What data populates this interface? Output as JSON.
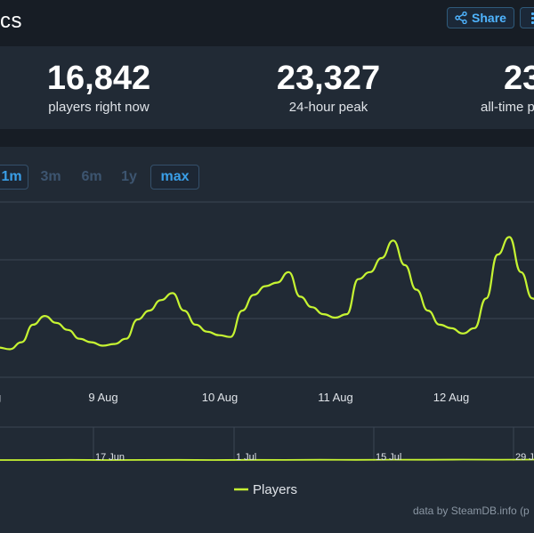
{
  "header": {
    "title_fragment": "cs",
    "share_label": "Share",
    "share_icon": "share-icon",
    "menu_icon": "more-vertical-icon"
  },
  "stats": [
    {
      "value": "16,842",
      "label": "players right now"
    },
    {
      "value": "23,327",
      "label": "24-hour peak"
    },
    {
      "value": "23",
      "label": "all-time p"
    }
  ],
  "ranges": [
    {
      "label": "1m",
      "active": true
    },
    {
      "label": "3m",
      "active": false
    },
    {
      "label": "6m",
      "active": false
    },
    {
      "label": "1y",
      "active": false
    },
    {
      "label": "max",
      "active": true
    }
  ],
  "colors": {
    "line": "#c6f432",
    "background": "#212a35",
    "grid": "#3a4552"
  },
  "chart_data": [
    {
      "type": "line",
      "x_ticks": [
        "9 Aug",
        "10 Aug",
        "11 Aug",
        "12 Aug"
      ],
      "y_ticks": [],
      "series": [
        {
          "name": "Players",
          "x": [
            8.0,
            8.1,
            8.2,
            8.3,
            8.4,
            8.5,
            8.6,
            8.7,
            8.8,
            8.9,
            9.0,
            9.1,
            9.2,
            9.3,
            9.4,
            9.5,
            9.6,
            9.7,
            9.8,
            9.9,
            10.0,
            10.1,
            10.2,
            10.3,
            10.4,
            10.5,
            10.6,
            10.7,
            10.8,
            10.9,
            11.0,
            11.1,
            11.2,
            11.3,
            11.4,
            11.5,
            11.6,
            11.7,
            11.8,
            11.9,
            12.0,
            12.1,
            12.2,
            12.3,
            12.4,
            12.5,
            12.6,
            12.7,
            12.8,
            12.9,
            13.0,
            13.05
          ],
          "y": [
            0.2,
            0.17,
            0.16,
            0.2,
            0.3,
            0.35,
            0.31,
            0.27,
            0.22,
            0.2,
            0.18,
            0.19,
            0.22,
            0.33,
            0.38,
            0.44,
            0.48,
            0.38,
            0.3,
            0.26,
            0.24,
            0.23,
            0.38,
            0.47,
            0.52,
            0.54,
            0.6,
            0.46,
            0.4,
            0.36,
            0.34,
            0.36,
            0.56,
            0.6,
            0.68,
            0.78,
            0.64,
            0.5,
            0.38,
            0.3,
            0.28,
            0.25,
            0.28,
            0.45,
            0.7,
            0.8,
            0.6,
            0.45,
            0.35,
            0.25,
            0.22,
            0.22
          ]
        }
      ],
      "legend": "bottom"
    },
    {
      "type": "line",
      "x_ticks": [
        "17 Jun",
        "1 Jul",
        "15 Jul",
        "29 J"
      ],
      "series": [
        {
          "name": "Players",
          "values": [
            0.1,
            0.1,
            0.12,
            0.1,
            0.11,
            0.12,
            0.1,
            0.12,
            0.11,
            0.13,
            0.12,
            0.14,
            0.13,
            0.15,
            0.14,
            0.15
          ]
        }
      ]
    }
  ],
  "legend_label": "Players",
  "credit": "data by SteamDB.info (p"
}
